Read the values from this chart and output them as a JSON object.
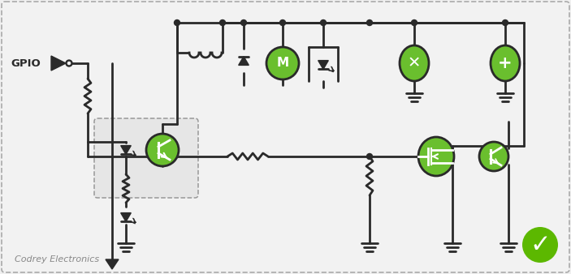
{
  "bg_color": "#f0f0f0",
  "border_color": "#aaaaaa",
  "line_color": "#2a2a2a",
  "green_color": "#6abf2e",
  "watermark": "Codrey Electronics",
  "checkmark_color": "#5cb800",
  "lw": 2.0
}
